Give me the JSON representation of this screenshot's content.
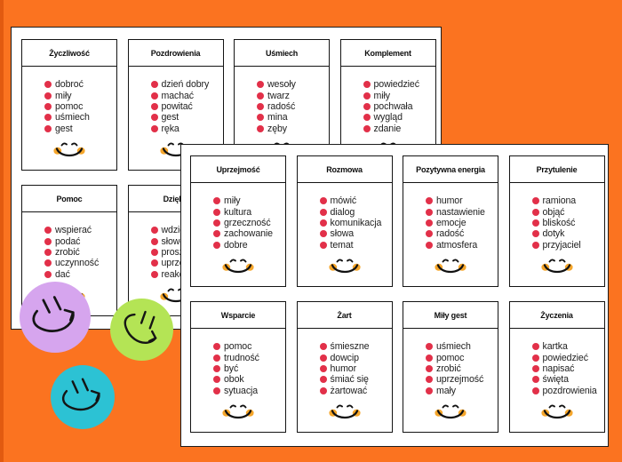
{
  "background": {
    "color": "#fb7320",
    "left_edge_strip_color": "#e25a10"
  },
  "colors": {
    "page_bg": "#ffffff",
    "card_border": "#141414",
    "bullet_red": "#e23049",
    "smiley_mouth": "#111111",
    "smiley_cheek_orange": "#f5a62b",
    "sticker_purple": "#d6a5ee",
    "sticker_green": "#b4e455",
    "sticker_teal": "#2cc2d4"
  },
  "pages": {
    "back": {
      "name": "back-worksheet-sheet",
      "cards": [
        {
          "title": "Życzliwość",
          "items": [
            "dobroć",
            "miły",
            "pomoc",
            "uśmiech",
            "gest"
          ]
        },
        {
          "title": "Pozdrowienia",
          "items": [
            "dzień dobry",
            "machać",
            "powitać",
            "gest",
            "ręka"
          ]
        },
        {
          "title": "Uśmiech",
          "items": [
            "wesoły",
            "twarz",
            "radość",
            "mina",
            "zęby"
          ]
        },
        {
          "title": "Komplement",
          "items": [
            "powiedzieć",
            "miły",
            "pochwała",
            "wygląd",
            "zdanie"
          ]
        },
        {
          "title": "Pomoc",
          "items": [
            "wspierać",
            "podać",
            "zrobić",
            "uczynność",
            "dać"
          ]
        },
        {
          "title": "Dzięku",
          "items": [
            "wdzięczn",
            "słowo",
            "proszę",
            "uprzejmo",
            "reakcja"
          ]
        }
      ]
    },
    "front": {
      "name": "front-worksheet-sheet",
      "cards": [
        {
          "title": "Uprzejmość",
          "items": [
            "miły",
            "kultura",
            "grzeczność",
            "zachowanie",
            "dobre"
          ]
        },
        {
          "title": "Rozmowa",
          "items": [
            "mówić",
            "dialog",
            "komunikacja",
            "słowa",
            "temat"
          ]
        },
        {
          "title": "Pozytywna energia",
          "items": [
            "humor",
            "nastawienie",
            "emocje",
            "radość",
            "atmosfera"
          ]
        },
        {
          "title": "Przytulenie",
          "items": [
            "ramiona",
            "objąć",
            "bliskość",
            "dotyk",
            "przyjaciel"
          ]
        },
        {
          "title": "Wsparcie",
          "items": [
            "pomoc",
            "trudność",
            "być",
            "obok",
            "sytuacja"
          ]
        },
        {
          "title": "Żart",
          "items": [
            "śmieszne",
            "dowcip",
            "humor",
            "śmiać się",
            "żartować"
          ]
        },
        {
          "title": "Miły gest",
          "items": [
            "uśmiech",
            "pomoc",
            "zrobić",
            "uprzejmość",
            "mały"
          ]
        },
        {
          "title": "Życzenia",
          "items": [
            "kartka",
            "powiedzieć",
            "napisać",
            "święta",
            "pozdrowienia"
          ]
        }
      ]
    }
  },
  "stickers": [
    {
      "name": "smiley-sticker-purple",
      "color": "#d6a5ee",
      "rotation_deg": -8
    },
    {
      "name": "smiley-sticker-green",
      "color": "#b4e455",
      "rotation_deg": 38
    },
    {
      "name": "smiley-sticker-teal",
      "color": "#2cc2d4",
      "rotation_deg": -6
    }
  ]
}
